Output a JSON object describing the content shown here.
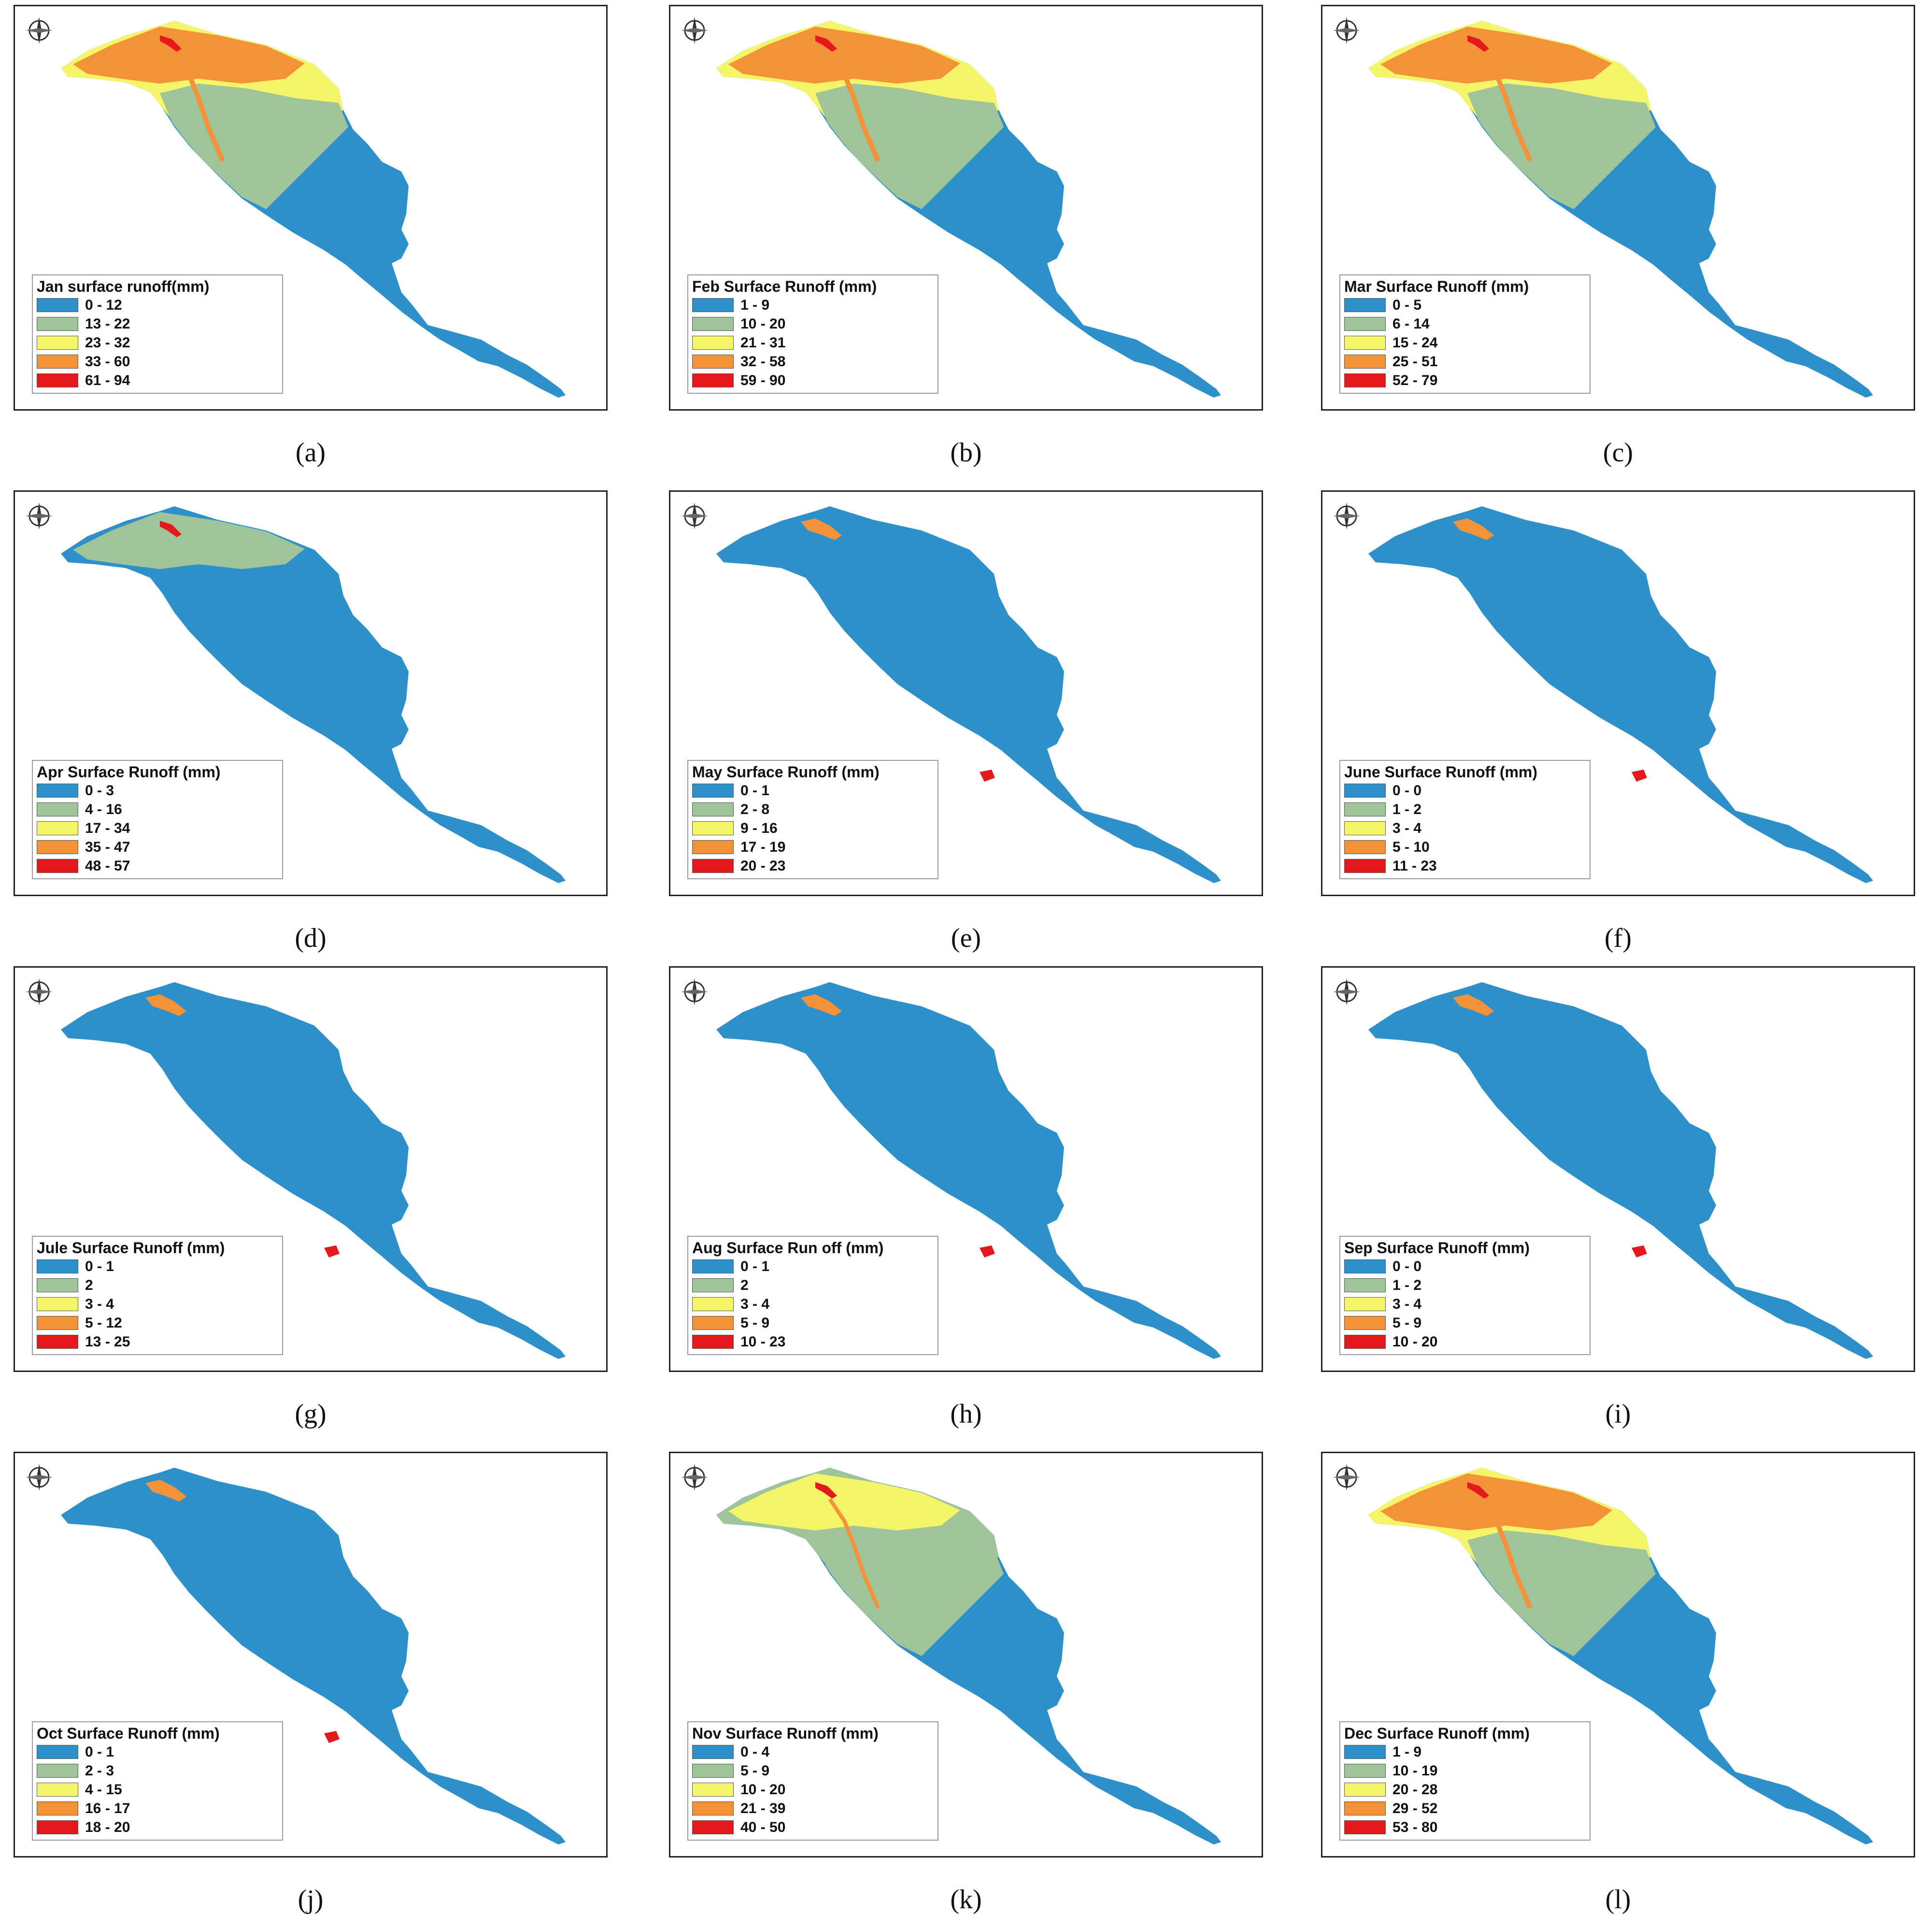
{
  "colors": {
    "blue": "#2e90c8",
    "green": "#9fc49a",
    "yellow": "#f5f56a",
    "orange": "#f4923a",
    "red": "#e5191c"
  },
  "compass_icon": "north-arrow-icon",
  "panels": [
    {
      "caption": "(a)",
      "legend_title": "Jan surface runoff(mm)",
      "classes": [
        "0 - 12",
        "13 - 22",
        "23 - 32",
        "33 - 60",
        "61 - 94"
      ],
      "pattern": "wet"
    },
    {
      "caption": "(b)",
      "legend_title": "Feb Surface Runoff (mm)",
      "classes": [
        "1 - 9",
        "10 - 20",
        "21 - 31",
        "32 - 58",
        "59 - 90"
      ],
      "pattern": "wet"
    },
    {
      "caption": "(c)",
      "legend_title": "Mar Surface Runoff (mm)",
      "classes": [
        "0 - 5",
        "6 - 14",
        "15 - 24",
        "25 - 51",
        "52 - 79"
      ],
      "pattern": "wet"
    },
    {
      "caption": "(d)",
      "legend_title": "Apr Surface Runoff (mm)",
      "classes": [
        "0 - 3",
        "4 - 16",
        "17 - 34",
        "35 - 47",
        "48 - 57"
      ],
      "pattern": "spring"
    },
    {
      "caption": "(e)",
      "legend_title": "May Surface Runoff (mm)",
      "classes": [
        "0 - 1",
        "2 - 8",
        "9 - 16",
        "17 - 19",
        "20 - 23"
      ],
      "pattern": "dry"
    },
    {
      "caption": "(f)",
      "legend_title": "June Surface Runoff (mm)",
      "classes": [
        "0 - 0",
        "1 - 2",
        "3 - 4",
        "5 - 10",
        "11 - 23"
      ],
      "pattern": "dry"
    },
    {
      "caption": "(g)",
      "legend_title": "Jule Surface Runoff (mm)",
      "classes": [
        "0 - 1",
        "2",
        "3 - 4",
        "5 - 12",
        "13 - 25"
      ],
      "pattern": "dry"
    },
    {
      "caption": "(h)",
      "legend_title": "Aug Surface Run off (mm)",
      "classes": [
        "0 - 1",
        "2",
        "3 - 4",
        "5 - 9",
        "10 - 23"
      ],
      "pattern": "dry"
    },
    {
      "caption": "(i)",
      "legend_title": "Sep Surface Runoff (mm)",
      "classes": [
        "0 - 0",
        "1 - 2",
        "3 - 4",
        "5 - 9",
        "10 - 20"
      ],
      "pattern": "dry"
    },
    {
      "caption": "(j)",
      "legend_title": "Oct Surface Runoff (mm)",
      "classes": [
        "0 - 1",
        "2 - 3",
        "4 - 15",
        "16 - 17",
        "18 - 20"
      ],
      "pattern": "dry"
    },
    {
      "caption": "(k)",
      "legend_title": "Nov Surface Runoff (mm)",
      "classes": [
        "0 - 4",
        "5 - 9",
        "10 - 20",
        "21 - 39",
        "40 - 50"
      ],
      "pattern": "autumn"
    },
    {
      "caption": "(l)",
      "legend_title": "Dec Surface Runoff (mm)",
      "classes": [
        "1 - 9",
        "10 - 19",
        "20 - 28",
        "29 - 52",
        "53 - 80"
      ],
      "pattern": "wet"
    }
  ]
}
